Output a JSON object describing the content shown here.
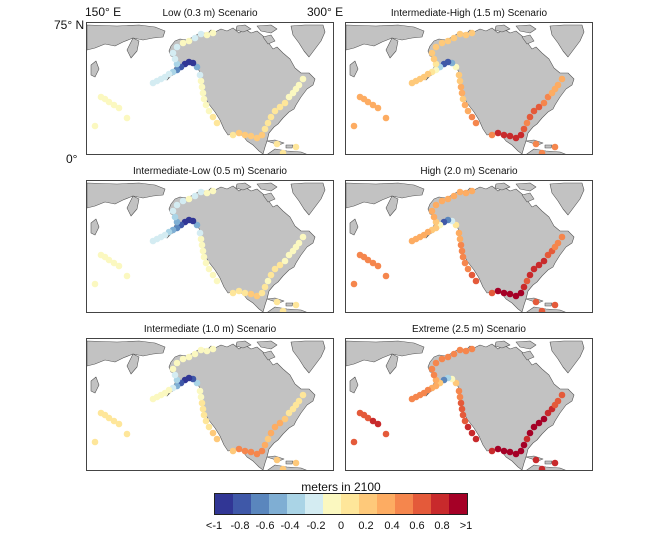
{
  "axes": {
    "lon_labels": [
      "150° E",
      "300° E"
    ],
    "lat_labels": [
      "75° N",
      "0°"
    ]
  },
  "panels": [
    {
      "title": "Low  (0.3 m) Scenario",
      "level": 0
    },
    {
      "title": "Intermediate-High (1.5 m) Scenario",
      "level": 3
    },
    {
      "title": "Intermediate-Low (0.5 m) Scenario",
      "level": 1
    },
    {
      "title": "High (2.0 m) Scenario",
      "level": 4
    },
    {
      "title": "Intermediate (1.0 m) Scenario",
      "level": 2
    },
    {
      "title": "Extreme (2.5 m) Scenario",
      "level": 5
    }
  ],
  "colorbar": {
    "title": "meters in 2100",
    "labels": [
      "<-1",
      "-0.8",
      "-0.6",
      "-0.4",
      "-0.2",
      "0",
      "0.2",
      "0.4",
      "0.6",
      "0.8",
      ">1"
    ],
    "colors": [
      "#313695",
      "#3f58a8",
      "#5a86bd",
      "#7faed3",
      "#aad4e6",
      "#d4ecf2",
      "#fbf8c0",
      "#fee69a",
      "#fec97a",
      "#fdac62",
      "#f5864d",
      "#e45a3a",
      "#c82a2c",
      "#a50026"
    ]
  },
  "colors": {
    "land": "#c2c2c2",
    "coast": "#555555",
    "ocean": "#ffffff"
  }
}
